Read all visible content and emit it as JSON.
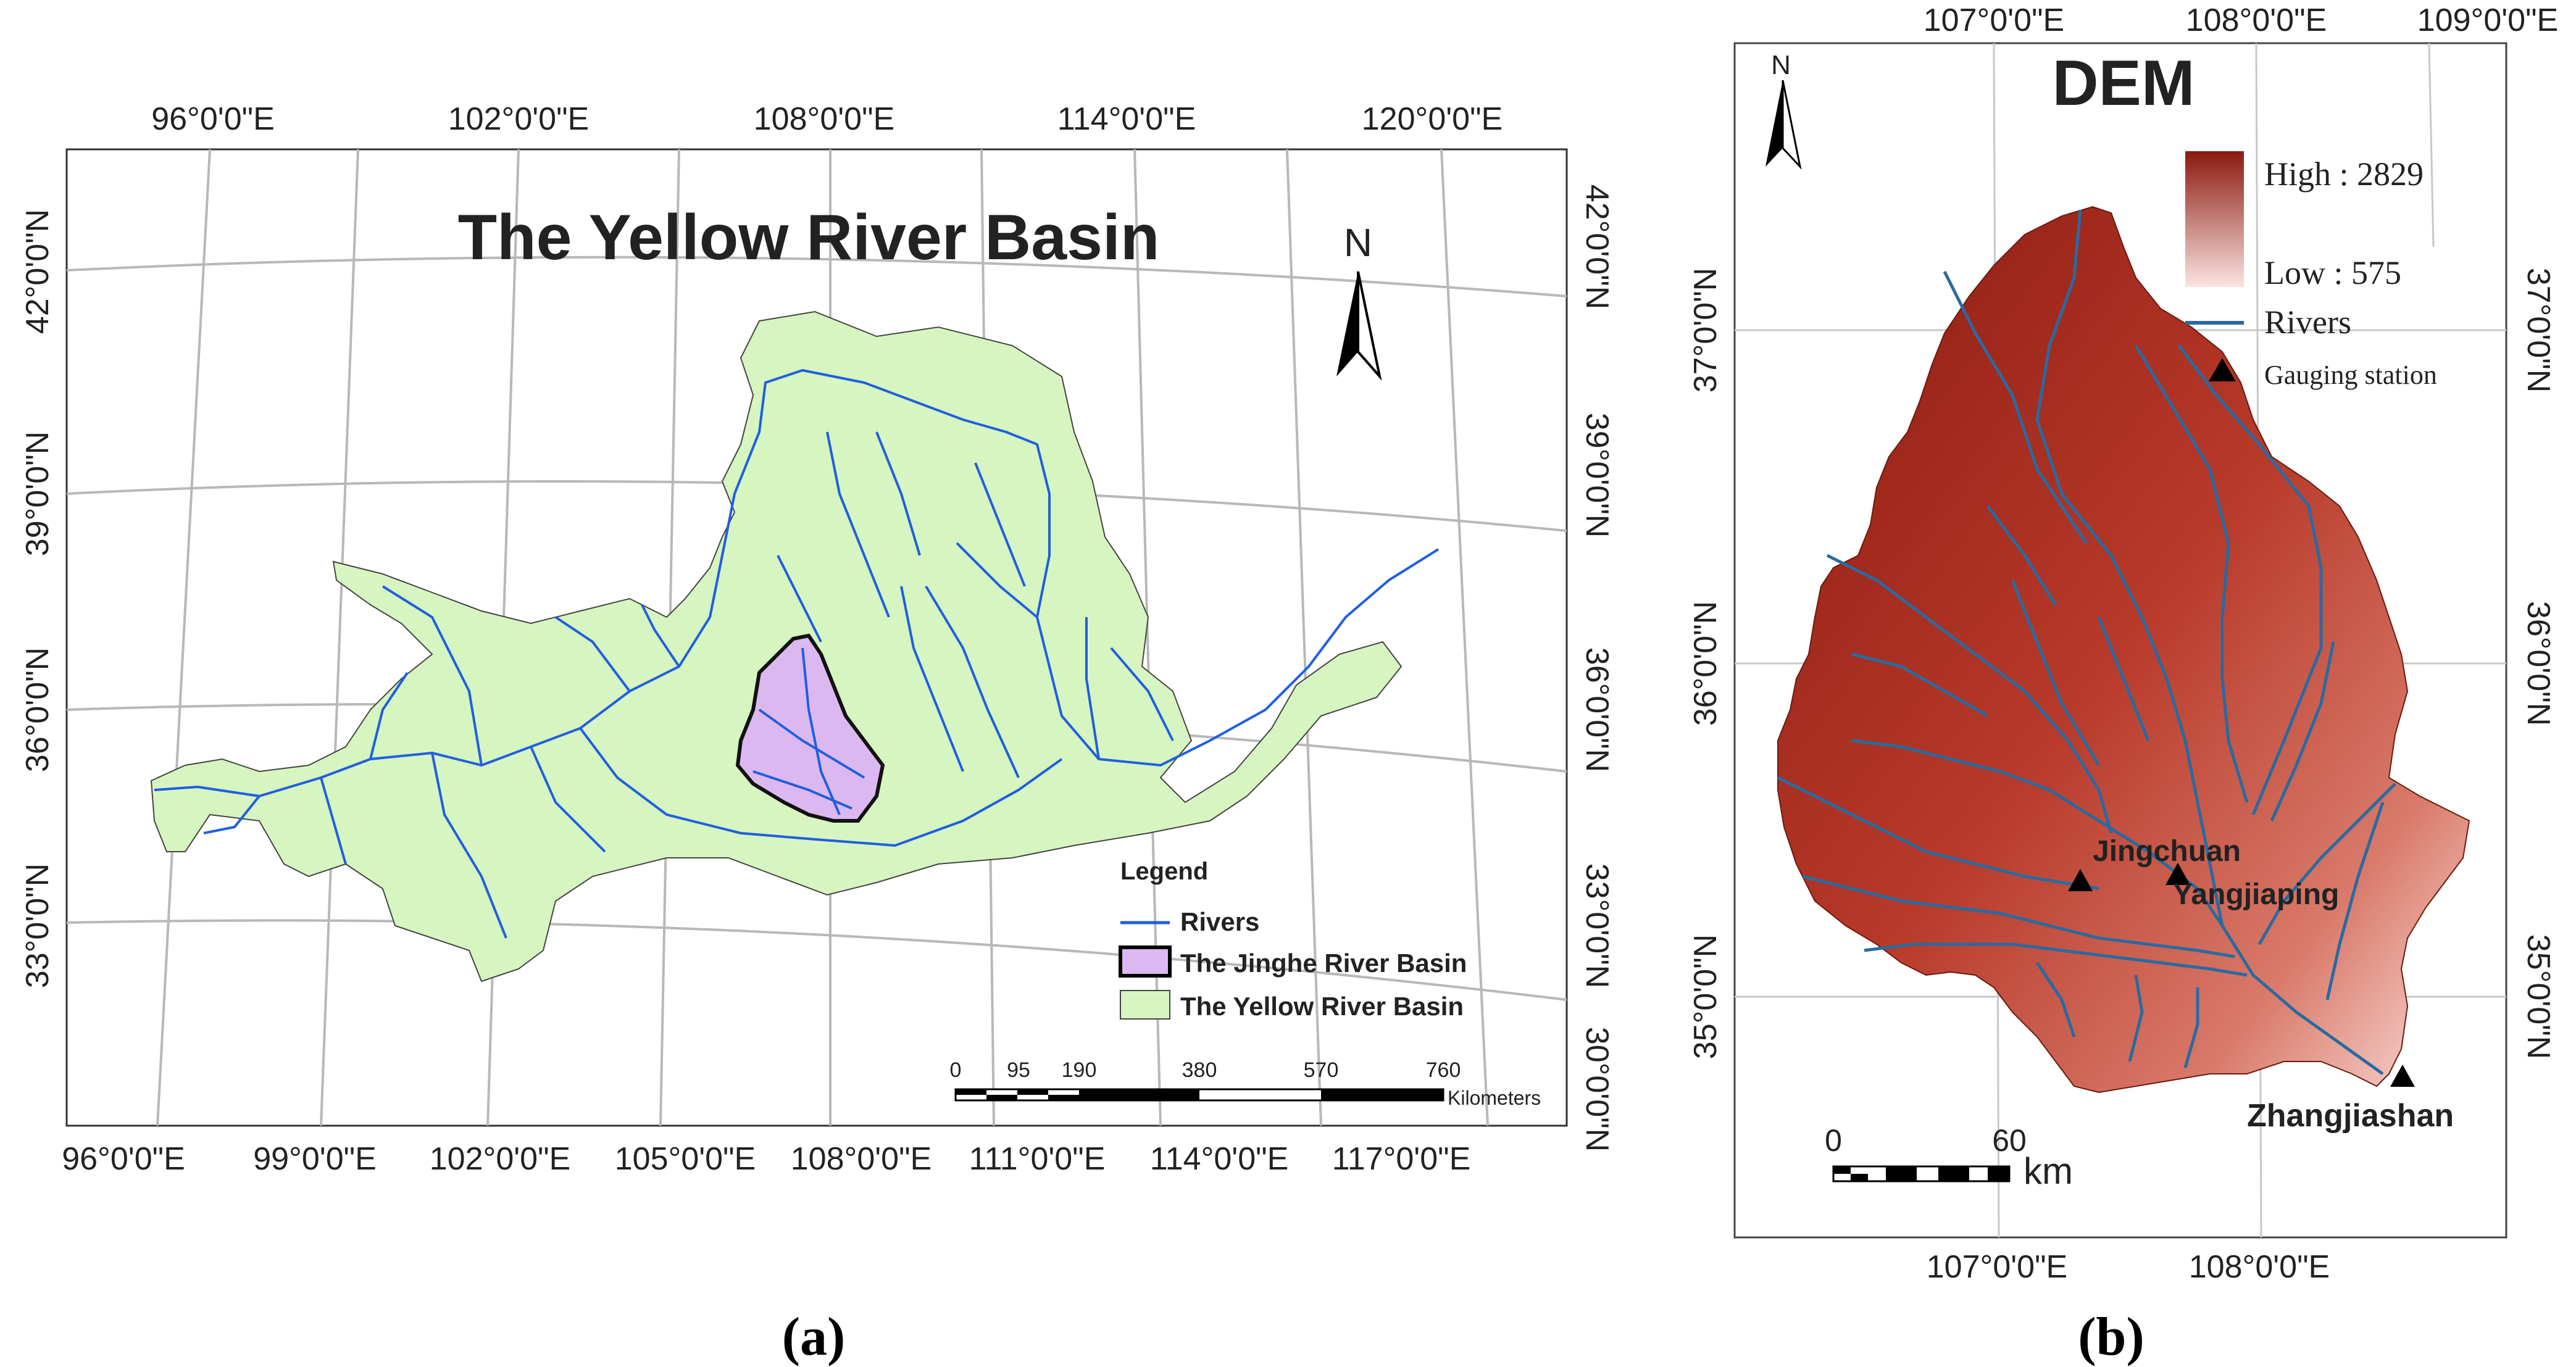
{
  "panel_a": {
    "title": "The Yellow River Basin",
    "north": "N",
    "top_lon": [
      "96°0'0\"E",
      "102°0'0\"E",
      "108°0'0\"E",
      "114°0'0\"E",
      "120°0'0\"E"
    ],
    "bottom_lon": [
      "96°0'0\"E",
      "99°0'0\"E",
      "102°0'0\"E",
      "105°0'0\"E",
      "108°0'0\"E",
      "111°0'0\"E",
      "114°0'0\"E",
      "117°0'0\"E"
    ],
    "left_lat": [
      "42°0'0\"N",
      "39°0'0\"N",
      "36°0'0\"N",
      "33°0'0\"N"
    ],
    "right_lat": [
      "42°0'0\"N",
      "39°0'0\"N",
      "36°0'0\"N",
      "33°0'0\"N",
      "30°0'0\"N"
    ],
    "legend": {
      "title": "Legend",
      "rivers": "Rivers",
      "jinghe": "The Jinghe River Basin",
      "yellow": "The Yellow River Basin"
    },
    "scale": {
      "ticks": [
        "0",
        "95",
        "190",
        "380",
        "570",
        "760"
      ],
      "unit": "Kilometers"
    },
    "caption": "(a)",
    "colors": {
      "basin_fill": "#d6f5c0",
      "jinghe_fill": "#dcb8f0",
      "river": "#1f5fe0"
    }
  },
  "panel_b": {
    "title": "DEM",
    "north": "N",
    "top_lon": [
      "107°0'0\"E",
      "108°0'0\"E",
      "109°0'0\"E"
    ],
    "bottom_lon": [
      "107°0'0\"E",
      "108°0'0\"E"
    ],
    "left_lat": [
      "37°0'0\"N",
      "36°0'0\"N",
      "35°0'0\"N"
    ],
    "right_lat": [
      "37°0'0\"N",
      "36°0'0\"N",
      "35°0'0\"N"
    ],
    "legend": {
      "high": "High : 2829",
      "low": "Low : 575",
      "rivers": "Rivers",
      "station": "Gauging station"
    },
    "stations": [
      "Jingchuan",
      "Yangjiaping",
      "Zhangjiashan"
    ],
    "scale": {
      "ticks": [
        "0",
        "60"
      ],
      "unit": "km"
    },
    "caption": "(b)",
    "colors": {
      "dem_high": "#8b1a10",
      "dem_low": "#fbe3e0",
      "river": "#2a6aa0"
    }
  }
}
